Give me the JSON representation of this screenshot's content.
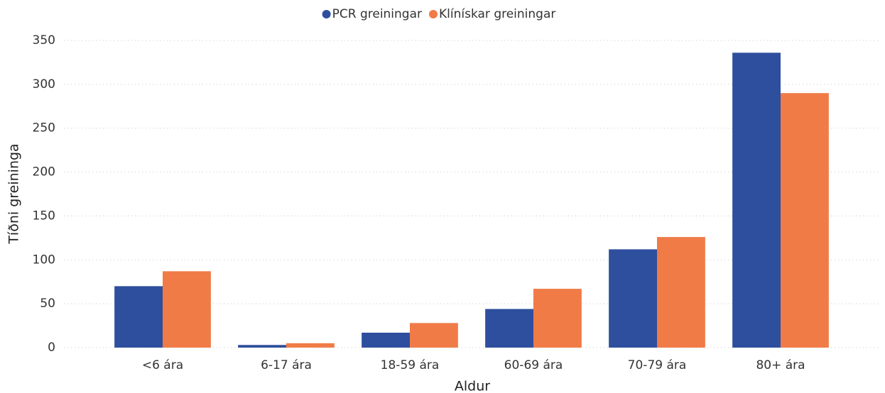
{
  "chart_data": {
    "type": "bar",
    "xlabel": "Aldur",
    "ylabel": "Tíðni greininga",
    "categories": [
      "<6 ára",
      "6-17 ára",
      "18-59 ára",
      "60-69 ára",
      "70-79 ára",
      "80+ ára"
    ],
    "series": [
      {
        "name": "PCR greiningar",
        "color": "#2e4f9e",
        "values": [
          70,
          3,
          17,
          44,
          112,
          336
        ]
      },
      {
        "name": "Klínískar greiningar",
        "color": "#f07b47",
        "values": [
          87,
          5,
          28,
          67,
          126,
          290
        ]
      }
    ],
    "ylim": [
      0,
      350
    ],
    "yticks": [
      0,
      50,
      100,
      150,
      200,
      250,
      300,
      350
    ],
    "grid": true,
    "legend": "top"
  }
}
